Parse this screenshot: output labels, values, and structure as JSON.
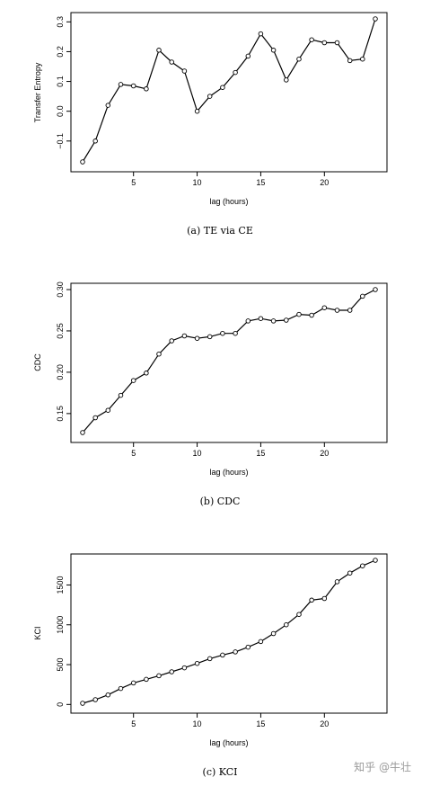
{
  "watermark": "知乎 @牛壮",
  "chart_data": [
    {
      "type": "line",
      "caption": "(a)  TE via CE",
      "xlabel": "lag (hours)",
      "ylabel": "Transfer Entropy",
      "xlim": [
        1,
        24
      ],
      "ylim": [
        -0.17,
        0.31
      ],
      "xticks": [
        5,
        10,
        15,
        20
      ],
      "yticks": [
        -0.1,
        0.0,
        0.1,
        0.2,
        0.3
      ],
      "ytick_labels": [
        "−0.1",
        "0.0",
        "0.1",
        "0.2",
        "0.3"
      ],
      "x": [
        1,
        2,
        3,
        4,
        5,
        6,
        7,
        8,
        9,
        10,
        11,
        12,
        13,
        14,
        15,
        16,
        17,
        18,
        19,
        20,
        21,
        22,
        23,
        24
      ],
      "values": [
        -0.17,
        -0.1,
        0.02,
        0.09,
        0.085,
        0.075,
        0.205,
        0.165,
        0.135,
        0.0,
        0.05,
        0.08,
        0.13,
        0.185,
        0.26,
        0.205,
        0.105,
        0.175,
        0.24,
        0.23,
        0.23,
        0.17,
        0.175,
        0.31
      ]
    },
    {
      "type": "line",
      "caption": "(b)  CDC",
      "xlabel": "lag (hours)",
      "ylabel": "CDC",
      "xlim": [
        1,
        24
      ],
      "ylim": [
        0.127,
        0.3
      ],
      "xticks": [
        5,
        10,
        15,
        20
      ],
      "yticks": [
        0.15,
        0.2,
        0.25,
        0.3
      ],
      "ytick_labels": [
        "0.15",
        "0.20",
        "0.25",
        "0.30"
      ],
      "x": [
        1,
        2,
        3,
        4,
        5,
        6,
        7,
        8,
        9,
        10,
        11,
        12,
        13,
        14,
        15,
        16,
        17,
        18,
        19,
        20,
        21,
        22,
        23,
        24
      ],
      "values": [
        0.127,
        0.145,
        0.154,
        0.172,
        0.19,
        0.199,
        0.222,
        0.238,
        0.244,
        0.241,
        0.243,
        0.247,
        0.247,
        0.262,
        0.265,
        0.262,
        0.263,
        0.27,
        0.269,
        0.278,
        0.275,
        0.275,
        0.292,
        0.3
      ]
    },
    {
      "type": "line",
      "caption": "(c)  KCI",
      "xlabel": "lag (hours)",
      "ylabel": "KCI",
      "xlim": [
        1,
        24
      ],
      "ylim": [
        15,
        1810
      ],
      "xticks": [
        5,
        10,
        15,
        20
      ],
      "yticks": [
        0,
        500,
        1000,
        1500
      ],
      "ytick_labels": [
        "0",
        "500",
        "1000",
        "1500"
      ],
      "x": [
        1,
        2,
        3,
        4,
        5,
        6,
        7,
        8,
        9,
        10,
        11,
        12,
        13,
        14,
        15,
        16,
        17,
        18,
        19,
        20,
        21,
        22,
        23,
        24
      ],
      "values": [
        15,
        60,
        120,
        200,
        270,
        315,
        360,
        410,
        460,
        515,
        575,
        620,
        660,
        720,
        790,
        890,
        1000,
        1130,
        1310,
        1330,
        1540,
        1650,
        1740,
        1810
      ]
    }
  ]
}
